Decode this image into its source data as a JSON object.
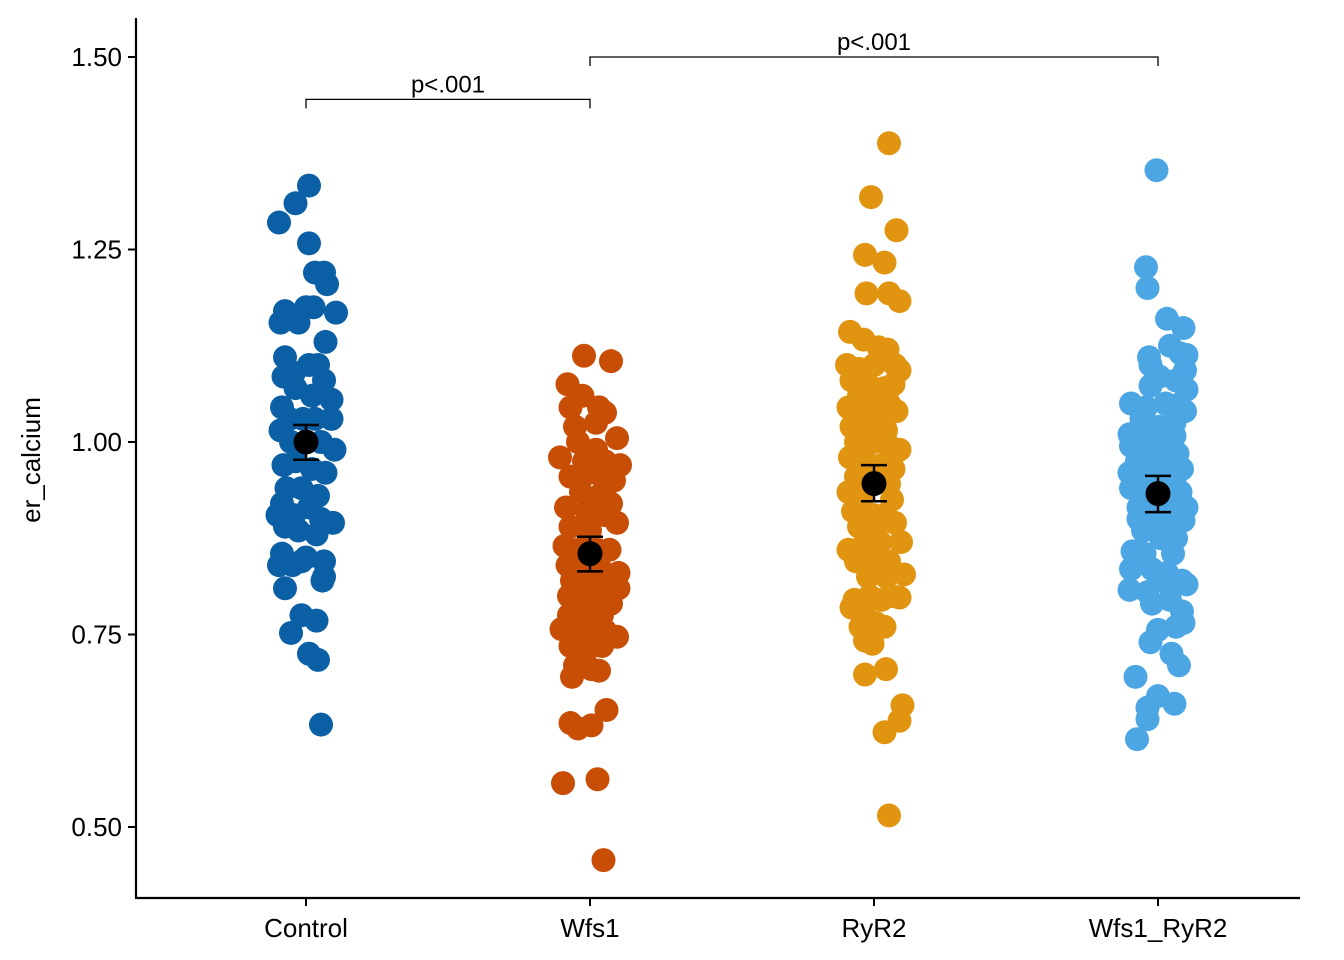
{
  "chart_data": {
    "type": "scatter",
    "ylabel": "er_calcium",
    "xlabel": "",
    "ylim": [
      0.41,
      1.555
    ],
    "yticks": [
      0.5,
      0.75,
      1.0,
      1.25,
      1.5
    ],
    "ytick_labels": [
      "0.50",
      "0.75",
      "1.00",
      "1.25",
      "1.50"
    ],
    "categories": [
      "Control",
      "Wfs1",
      "RyR2",
      "Wfs1_RyR2"
    ],
    "colors": [
      "#0B5FA5",
      "#C84E06",
      "#E09410",
      "#4BA6E3"
    ],
    "groups": [
      {
        "name": "Control",
        "mean": 1.0,
        "ci_low": 0.977,
        "ci_high": 1.022,
        "points": [
          [
            -0.18,
            1.285
          ],
          [
            -0.07,
            1.31
          ],
          [
            0.02,
            1.333
          ],
          [
            0.02,
            1.258
          ],
          [
            0.06,
            1.22
          ],
          [
            0.12,
            1.22
          ],
          [
            0.14,
            1.205
          ],
          [
            0.2,
            1.168
          ],
          [
            -0.17,
            1.155
          ],
          [
            -0.14,
            1.17
          ],
          [
            -0.05,
            1.155
          ],
          [
            0.0,
            1.175
          ],
          [
            0.05,
            1.175
          ],
          [
            0.13,
            1.13
          ],
          [
            -0.14,
            1.11
          ],
          [
            -0.08,
            1.09
          ],
          [
            0.02,
            1.1
          ],
          [
            0.08,
            1.1
          ],
          [
            -0.15,
            1.085
          ],
          [
            -0.07,
            1.07
          ],
          [
            0.04,
            1.06
          ],
          [
            0.12,
            1.08
          ],
          [
            0.17,
            1.055
          ],
          [
            -0.16,
            1.045
          ],
          [
            -0.11,
            1.03
          ],
          [
            -0.02,
            1.03
          ],
          [
            0.06,
            1.03
          ],
          [
            0.17,
            1.03
          ],
          [
            -0.17,
            1.015
          ],
          [
            -0.1,
            1.0
          ],
          [
            0.0,
            1.0
          ],
          [
            0.1,
            1.0
          ],
          [
            0.19,
            0.99
          ],
          [
            -0.15,
            0.97
          ],
          [
            -0.07,
            0.975
          ],
          [
            0.04,
            0.965
          ],
          [
            0.13,
            0.96
          ],
          [
            -0.13,
            0.94
          ],
          [
            -0.03,
            0.94
          ],
          [
            0.08,
            0.93
          ],
          [
            -0.16,
            0.92
          ],
          [
            -0.08,
            0.905
          ],
          [
            0.02,
            0.915
          ],
          [
            0.1,
            0.9
          ],
          [
            -0.19,
            0.905
          ],
          [
            -0.14,
            0.89
          ],
          [
            -0.05,
            0.885
          ],
          [
            0.07,
            0.88
          ],
          [
            0.18,
            0.895
          ],
          [
            -0.16,
            0.855
          ],
          [
            -0.09,
            0.84
          ],
          [
            0.0,
            0.85
          ],
          [
            0.12,
            0.845
          ],
          [
            -0.18,
            0.84
          ],
          [
            -0.14,
            0.81
          ],
          [
            -0.03,
            0.845
          ],
          [
            0.11,
            0.82
          ],
          [
            0.12,
            0.825
          ],
          [
            -0.03,
            0.775
          ],
          [
            0.07,
            0.768
          ],
          [
            -0.1,
            0.752
          ],
          [
            0.02,
            0.725
          ],
          [
            0.08,
            0.717
          ],
          [
            0.1,
            0.633
          ]
        ]
      },
      {
        "name": "Wfs1",
        "mean": 0.855,
        "ci_low": 0.832,
        "ci_high": 0.877,
        "points": [
          [
            -0.04,
            1.112
          ],
          [
            0.14,
            1.105
          ],
          [
            -0.15,
            1.075
          ],
          [
            -0.05,
            1.06
          ],
          [
            -0.13,
            1.045
          ],
          [
            0.06,
            1.045
          ],
          [
            0.1,
            1.038
          ],
          [
            -0.1,
            1.02
          ],
          [
            0.04,
            1.025
          ],
          [
            -0.08,
            1.0
          ],
          [
            0.04,
            0.99
          ],
          [
            0.18,
            1.005
          ],
          [
            -0.2,
            0.98
          ],
          [
            -0.04,
            0.975
          ],
          [
            0.1,
            0.975
          ],
          [
            0.2,
            0.97
          ],
          [
            -0.13,
            0.955
          ],
          [
            0.0,
            0.96
          ],
          [
            0.08,
            0.955
          ],
          [
            0.16,
            0.95
          ],
          [
            -0.06,
            0.935
          ],
          [
            0.06,
            0.93
          ],
          [
            0.14,
            0.92
          ],
          [
            -0.16,
            0.915
          ],
          [
            -0.02,
            0.91
          ],
          [
            0.1,
            0.905
          ],
          [
            -0.13,
            0.89
          ],
          [
            0.0,
            0.885
          ],
          [
            0.18,
            0.895
          ],
          [
            -0.17,
            0.865
          ],
          [
            -0.08,
            0.86
          ],
          [
            0.05,
            0.86
          ],
          [
            0.13,
            0.86
          ],
          [
            -0.15,
            0.84
          ],
          [
            -0.03,
            0.84
          ],
          [
            0.07,
            0.835
          ],
          [
            0.19,
            0.83
          ],
          [
            -0.12,
            0.82
          ],
          [
            -0.01,
            0.815
          ],
          [
            0.1,
            0.815
          ],
          [
            0.19,
            0.81
          ],
          [
            -0.14,
            0.8
          ],
          [
            -0.05,
            0.795
          ],
          [
            0.05,
            0.79
          ],
          [
            0.14,
            0.79
          ],
          [
            -0.14,
            0.775
          ],
          [
            -0.04,
            0.77
          ],
          [
            0.08,
            0.775
          ],
          [
            -0.19,
            0.757
          ],
          [
            -0.08,
            0.75
          ],
          [
            0.03,
            0.755
          ],
          [
            0.1,
            0.755
          ],
          [
            0.18,
            0.747
          ],
          [
            -0.13,
            0.735
          ],
          [
            -0.02,
            0.73
          ],
          [
            0.08,
            0.735
          ],
          [
            -0.1,
            0.71
          ],
          [
            0.01,
            0.705
          ],
          [
            0.06,
            0.703
          ],
          [
            -0.12,
            0.695
          ],
          [
            -0.13,
            0.635
          ],
          [
            -0.08,
            0.628
          ],
          [
            0.01,
            0.632
          ],
          [
            0.11,
            0.652
          ],
          [
            -0.18,
            0.557
          ],
          [
            0.05,
            0.562
          ],
          [
            0.09,
            0.457
          ]
        ]
      },
      {
        "name": "RyR2",
        "mean": 0.946,
        "ci_low": 0.923,
        "ci_high": 0.97,
        "points": [
          [
            0.1,
            1.388
          ],
          [
            -0.02,
            1.318
          ],
          [
            0.15,
            1.275
          ],
          [
            -0.06,
            1.243
          ],
          [
            0.07,
            1.233
          ],
          [
            -0.05,
            1.193
          ],
          [
            0.1,
            1.193
          ],
          [
            0.17,
            1.183
          ],
          [
            -0.16,
            1.143
          ],
          [
            -0.07,
            1.133
          ],
          [
            0.03,
            1.123
          ],
          [
            0.09,
            1.12
          ],
          [
            -0.18,
            1.1
          ],
          [
            -0.1,
            1.095
          ],
          [
            0.0,
            1.1
          ],
          [
            0.14,
            1.1
          ],
          [
            0.17,
            1.093
          ],
          [
            -0.15,
            1.08
          ],
          [
            -0.04,
            1.075
          ],
          [
            0.07,
            1.07
          ],
          [
            0.13,
            1.075
          ],
          [
            -0.1,
            1.06
          ],
          [
            0.01,
            1.055
          ],
          [
            0.1,
            1.05
          ],
          [
            -0.17,
            1.045
          ],
          [
            -0.06,
            1.04
          ],
          [
            0.04,
            1.04
          ],
          [
            0.15,
            1.04
          ],
          [
            -0.15,
            1.02
          ],
          [
            -0.03,
            1.02
          ],
          [
            0.08,
            1.015
          ],
          [
            -0.12,
            1.0
          ],
          [
            0.0,
            1.0
          ],
          [
            0.1,
            0.995
          ],
          [
            0.17,
            0.99
          ],
          [
            -0.16,
            0.98
          ],
          [
            -0.06,
            0.975
          ],
          [
            0.05,
            0.97
          ],
          [
            0.13,
            0.965
          ],
          [
            -0.12,
            0.955
          ],
          [
            -0.01,
            0.95
          ],
          [
            0.1,
            0.945
          ],
          [
            -0.17,
            0.935
          ],
          [
            -0.07,
            0.93
          ],
          [
            0.12,
            0.925
          ],
          [
            -0.14,
            0.91
          ],
          [
            0.0,
            0.905
          ],
          [
            0.07,
            0.905
          ],
          [
            -0.1,
            0.89
          ],
          [
            0.01,
            0.885
          ],
          [
            0.14,
            0.895
          ],
          [
            -0.17,
            0.86
          ],
          [
            -0.06,
            0.87
          ],
          [
            0.04,
            0.87
          ],
          [
            0.18,
            0.87
          ],
          [
            -0.12,
            0.845
          ],
          [
            0.0,
            0.85
          ],
          [
            0.1,
            0.845
          ],
          [
            -0.04,
            0.825
          ],
          [
            0.08,
            0.825
          ],
          [
            0.2,
            0.828
          ],
          [
            -0.13,
            0.795
          ],
          [
            -0.03,
            0.8
          ],
          [
            0.05,
            0.795
          ],
          [
            0.12,
            0.8
          ],
          [
            -0.15,
            0.785
          ],
          [
            -0.07,
            0.78
          ],
          [
            0.17,
            0.798
          ],
          [
            -0.09,
            0.76
          ],
          [
            0.01,
            0.765
          ],
          [
            0.07,
            0.76
          ],
          [
            -0.06,
            0.742
          ],
          [
            -0.01,
            0.738
          ],
          [
            0.08,
            0.705
          ],
          [
            -0.06,
            0.698
          ],
          [
            0.19,
            0.658
          ],
          [
            0.17,
            0.638
          ],
          [
            0.07,
            0.623
          ],
          [
            0.1,
            0.515
          ]
        ]
      },
      {
        "name": "Wfs1_RyR2",
        "mean": 0.933,
        "ci_low": 0.909,
        "ci_high": 0.956,
        "points": [
          [
            -0.01,
            1.353
          ],
          [
            -0.08,
            1.227
          ],
          [
            -0.07,
            1.2
          ],
          [
            0.06,
            1.16
          ],
          [
            0.17,
            1.148
          ],
          [
            0.08,
            1.125
          ],
          [
            0.15,
            1.115
          ],
          [
            0.19,
            1.113
          ],
          [
            -0.06,
            1.11
          ],
          [
            -0.05,
            1.1
          ],
          [
            0.18,
            1.093
          ],
          [
            0.01,
            1.085
          ],
          [
            0.12,
            1.08
          ],
          [
            -0.05,
            1.073
          ],
          [
            0.19,
            1.068
          ],
          [
            -0.18,
            1.05
          ],
          [
            -0.08,
            1.045
          ],
          [
            0.05,
            1.05
          ],
          [
            0.13,
            1.048
          ],
          [
            0.18,
            1.04
          ],
          [
            -0.11,
            1.03
          ],
          [
            0.01,
            1.02
          ],
          [
            0.11,
            1.025
          ],
          [
            -0.19,
            1.01
          ],
          [
            -0.08,
            1.005
          ],
          [
            0.02,
            1.0
          ],
          [
            0.11,
            1.008
          ],
          [
            -0.18,
            0.995
          ],
          [
            -0.09,
            0.99
          ],
          [
            0.09,
            0.99
          ],
          [
            0.13,
            0.985
          ],
          [
            -0.14,
            0.975
          ],
          [
            -0.04,
            0.975
          ],
          [
            0.06,
            0.97
          ],
          [
            0.16,
            0.965
          ],
          [
            -0.19,
            0.96
          ],
          [
            -0.1,
            0.955
          ],
          [
            0.02,
            0.955
          ],
          [
            0.11,
            0.95
          ],
          [
            -0.18,
            0.94
          ],
          [
            -0.08,
            0.935
          ],
          [
            0.05,
            0.93
          ],
          [
            0.15,
            0.935
          ],
          [
            -0.13,
            0.915
          ],
          [
            -0.03,
            0.92
          ],
          [
            0.09,
            0.915
          ],
          [
            0.19,
            0.915
          ],
          [
            -0.13,
            0.9
          ],
          [
            -0.05,
            0.895
          ],
          [
            0.06,
            0.9
          ],
          [
            0.17,
            0.898
          ],
          [
            -0.1,
            0.885
          ],
          [
            0.02,
            0.875
          ],
          [
            0.12,
            0.875
          ],
          [
            -0.17,
            0.858
          ],
          [
            -0.09,
            0.855
          ],
          [
            0.1,
            0.855
          ],
          [
            -0.18,
            0.835
          ],
          [
            -0.04,
            0.835
          ],
          [
            0.06,
            0.83
          ],
          [
            0.16,
            0.82
          ],
          [
            -0.19,
            0.808
          ],
          [
            -0.07,
            0.805
          ],
          [
            0.02,
            0.82
          ],
          [
            0.12,
            0.815
          ],
          [
            0.19,
            0.815
          ],
          [
            -0.04,
            0.79
          ],
          [
            0.08,
            0.795
          ],
          [
            0.16,
            0.78
          ],
          [
            0.0,
            0.756
          ],
          [
            0.12,
            0.76
          ],
          [
            -0.05,
            0.74
          ],
          [
            0.09,
            0.725
          ],
          [
            0.17,
            0.765
          ],
          [
            0.14,
            0.71
          ],
          [
            -0.15,
            0.695
          ],
          [
            -0.07,
            0.655
          ],
          [
            -0.07,
            0.64
          ],
          [
            0.0,
            0.67
          ],
          [
            0.11,
            0.66
          ],
          [
            -0.14,
            0.614
          ]
        ]
      }
    ],
    "annotations": [
      {
        "label": "p<.001",
        "from": "Control",
        "to": "Wfs1",
        "y": 1.445
      },
      {
        "label": "p<.001",
        "from": "Wfs1",
        "to": "Wfs1_RyR2",
        "y": 1.5
      }
    ]
  }
}
